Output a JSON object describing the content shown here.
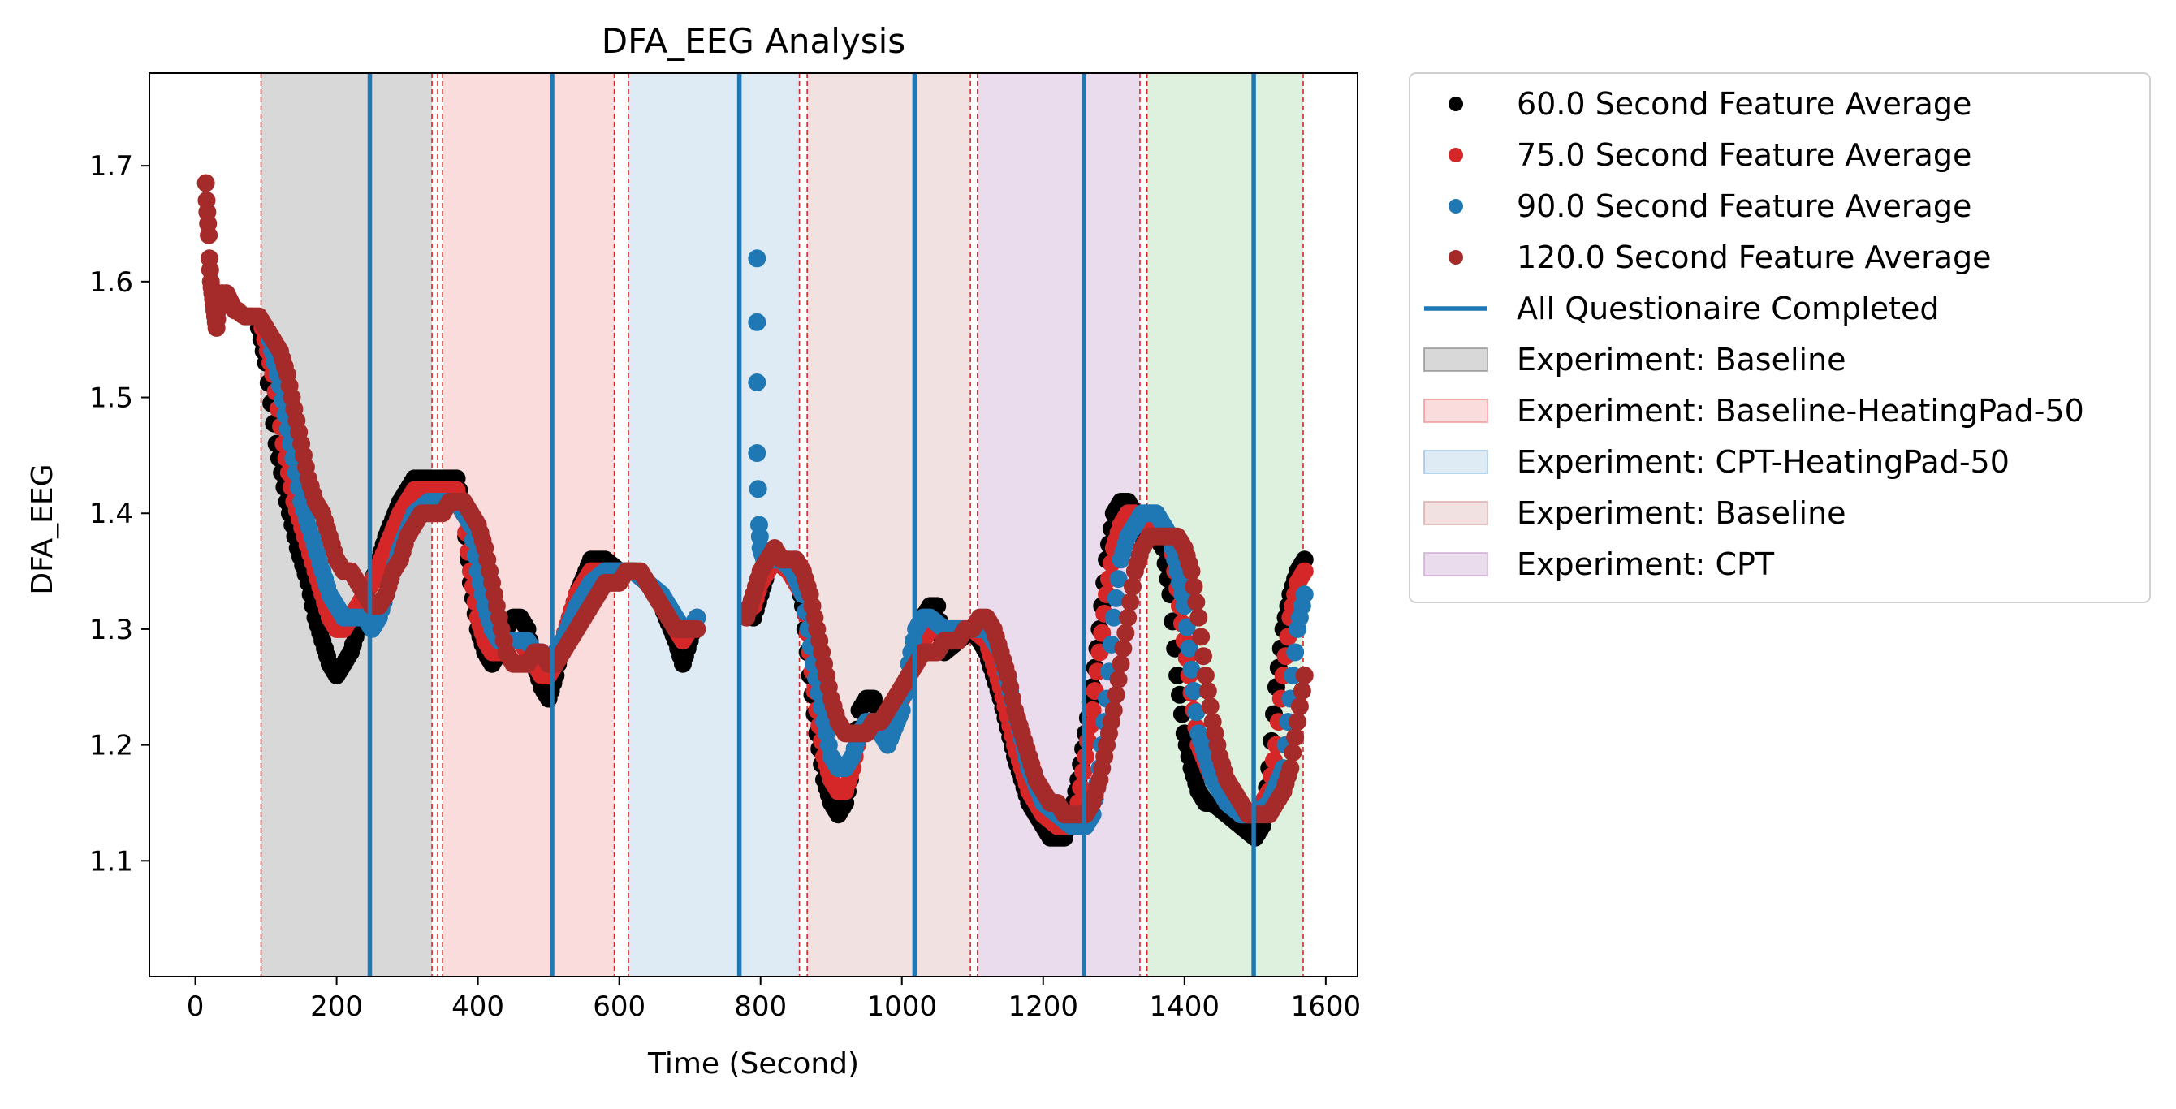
{
  "chart_data": {
    "type": "scatter",
    "title": "DFA_EEG Analysis",
    "xlabel": "Time (Second)",
    "ylabel": "DFA_EEG",
    "xlim": [
      -65,
      1645
    ],
    "ylim": [
      1.0,
      1.78
    ],
    "xticks": [
      0,
      200,
      400,
      600,
      800,
      1000,
      1200,
      1400,
      1600
    ],
    "xtick_labels": [
      "0",
      "200",
      "400",
      "600",
      "800",
      "1000",
      "1200",
      "1400",
      "1600"
    ],
    "yticks": [
      1.1,
      1.2,
      1.3,
      1.4,
      1.5,
      1.6,
      1.7
    ],
    "ytick_labels": [
      "1.1",
      "1.2",
      "1.3",
      "1.4",
      "1.5",
      "1.6",
      "1.7"
    ],
    "grid": false,
    "legend_position": "outside-right-top",
    "series": [
      {
        "name": "60.0 Second Feature Average",
        "color": "#000000",
        "x": [
          90,
          100,
          115,
          130,
          145,
          160,
          170,
          180,
          190,
          200,
          210,
          220,
          230,
          240,
          250,
          270,
          290,
          310,
          330,
          350,
          370,
          380,
          390,
          400,
          410,
          420,
          430,
          440,
          450,
          460,
          470,
          480,
          490,
          500,
          510,
          520,
          540,
          560,
          580,
          600,
          620,
          640,
          660,
          680,
          690,
          700,
          710
        ],
        "y": [
          1.56,
          1.53,
          1.46,
          1.41,
          1.37,
          1.34,
          1.31,
          1.29,
          1.27,
          1.26,
          1.27,
          1.28,
          1.3,
          1.33,
          1.34,
          1.38,
          1.41,
          1.43,
          1.43,
          1.43,
          1.43,
          1.4,
          1.34,
          1.3,
          1.28,
          1.27,
          1.28,
          1.3,
          1.31,
          1.31,
          1.3,
          1.27,
          1.25,
          1.24,
          1.26,
          1.29,
          1.33,
          1.36,
          1.36,
          1.35,
          1.35,
          1.34,
          1.32,
          1.29,
          1.27,
          1.29,
          1.31
        ]
      },
      {
        "name": "60.0 Second Feature Average",
        "color": "#000000",
        "x": [
          790,
          800,
          810,
          820,
          830,
          840,
          850,
          860,
          870,
          880,
          890,
          900,
          910,
          920,
          930,
          940,
          950,
          960,
          970,
          980,
          1000,
          1020,
          1030,
          1040,
          1050,
          1060,
          1080,
          1100,
          1120,
          1140,
          1160,
          1180,
          1200,
          1210,
          1220,
          1230,
          1240,
          1250,
          1260,
          1270,
          1280,
          1290,
          1300,
          1310,
          1320,
          1330,
          1340,
          1350,
          1360,
          1370,
          1380,
          1390,
          1400,
          1410,
          1420,
          1430,
          1440,
          1460,
          1480,
          1500,
          1510,
          1520,
          1530,
          1540,
          1550,
          1560,
          1570
        ],
        "y": [
          1.31,
          1.33,
          1.35,
          1.36,
          1.36,
          1.35,
          1.35,
          1.32,
          1.26,
          1.21,
          1.17,
          1.15,
          1.14,
          1.15,
          1.18,
          1.23,
          1.24,
          1.24,
          1.22,
          1.21,
          1.24,
          1.28,
          1.31,
          1.32,
          1.32,
          1.28,
          1.29,
          1.3,
          1.28,
          1.24,
          1.19,
          1.15,
          1.13,
          1.12,
          1.12,
          1.12,
          1.14,
          1.17,
          1.21,
          1.25,
          1.3,
          1.36,
          1.4,
          1.41,
          1.41,
          1.4,
          1.38,
          1.38,
          1.38,
          1.37,
          1.33,
          1.26,
          1.21,
          1.18,
          1.16,
          1.15,
          1.15,
          1.14,
          1.13,
          1.12,
          1.13,
          1.18,
          1.25,
          1.3,
          1.33,
          1.35,
          1.36
        ]
      },
      {
        "name": "75.0 Second Feature Average",
        "color": "#d62728",
        "x": [
          95,
          110,
          125,
          140,
          155,
          170,
          180,
          190,
          200,
          210,
          220,
          230,
          240,
          250,
          270,
          290,
          310,
          330,
          350,
          370,
          380,
          390,
          400,
          410,
          420,
          430,
          440,
          450,
          460,
          470,
          480,
          490,
          500,
          510,
          520,
          540,
          560,
          580,
          600,
          620,
          640,
          660,
          680,
          690,
          700,
          710
        ],
        "y": [
          1.56,
          1.52,
          1.46,
          1.41,
          1.38,
          1.35,
          1.33,
          1.31,
          1.3,
          1.3,
          1.31,
          1.32,
          1.33,
          1.34,
          1.37,
          1.4,
          1.42,
          1.42,
          1.42,
          1.42,
          1.4,
          1.35,
          1.31,
          1.29,
          1.28,
          1.28,
          1.29,
          1.29,
          1.29,
          1.28,
          1.27,
          1.26,
          1.26,
          1.27,
          1.29,
          1.33,
          1.35,
          1.35,
          1.35,
          1.35,
          1.34,
          1.32,
          1.3,
          1.29,
          1.3,
          1.31
        ]
      },
      {
        "name": "75.0 Second Feature Average",
        "color": "#d62728",
        "x": [
          790,
          800,
          820,
          840,
          860,
          870,
          880,
          890,
          900,
          910,
          920,
          930,
          940,
          950,
          960,
          970,
          980,
          1000,
          1020,
          1040,
          1060,
          1080,
          1100,
          1120,
          1140,
          1160,
          1180,
          1200,
          1220,
          1240,
          1250,
          1260,
          1270,
          1280,
          1290,
          1300,
          1310,
          1320,
          1330,
          1340,
          1360,
          1380,
          1400,
          1420,
          1440,
          1460,
          1480,
          1500,
          1520,
          1530,
          1540,
          1550,
          1560,
          1570
        ],
        "y": [
          1.32,
          1.34,
          1.36,
          1.35,
          1.33,
          1.28,
          1.23,
          1.19,
          1.17,
          1.16,
          1.16,
          1.18,
          1.21,
          1.22,
          1.22,
          1.21,
          1.21,
          1.24,
          1.28,
          1.3,
          1.3,
          1.3,
          1.3,
          1.29,
          1.25,
          1.2,
          1.16,
          1.14,
          1.13,
          1.13,
          1.15,
          1.19,
          1.23,
          1.28,
          1.33,
          1.37,
          1.39,
          1.4,
          1.4,
          1.39,
          1.39,
          1.38,
          1.29,
          1.2,
          1.17,
          1.16,
          1.14,
          1.14,
          1.16,
          1.2,
          1.26,
          1.31,
          1.34,
          1.35
        ]
      },
      {
        "name": "90.0 Second Feature Average",
        "color": "#1f77b4",
        "x": [
          105,
          120,
          135,
          150,
          165,
          180,
          190,
          200,
          210,
          220,
          230,
          240,
          250,
          260,
          270,
          290,
          310,
          330,
          350,
          370,
          390,
          400,
          410,
          420,
          430,
          440,
          450,
          460,
          470,
          480,
          490,
          500,
          510,
          520,
          540,
          560,
          580,
          600,
          620,
          640,
          660,
          680,
          690,
          700,
          710
        ],
        "y": [
          1.55,
          1.51,
          1.46,
          1.41,
          1.38,
          1.35,
          1.33,
          1.32,
          1.31,
          1.31,
          1.31,
          1.31,
          1.3,
          1.31,
          1.33,
          1.37,
          1.4,
          1.41,
          1.41,
          1.41,
          1.39,
          1.35,
          1.32,
          1.3,
          1.29,
          1.29,
          1.29,
          1.29,
          1.29,
          1.28,
          1.28,
          1.27,
          1.28,
          1.29,
          1.32,
          1.34,
          1.35,
          1.35,
          1.35,
          1.34,
          1.33,
          1.31,
          1.3,
          1.3,
          1.31
        ]
      },
      {
        "name": "90.0 Second Feature Average",
        "color": "#1f77b4",
        "x": [
          795,
          795,
          795,
          795,
          798,
          800,
          805,
          815,
          830,
          845,
          860,
          875,
          890,
          900,
          910,
          920,
          930,
          940,
          950,
          960,
          970,
          980,
          1000,
          1010,
          1020,
          1030,
          1040,
          1060,
          1080,
          1100,
          1120,
          1140,
          1160,
          1180,
          1200,
          1220,
          1240,
          1250,
          1260,
          1270,
          1280,
          1290,
          1300,
          1310,
          1320,
          1330,
          1340,
          1360,
          1380,
          1400,
          1420,
          1440,
          1460,
          1480,
          1500,
          1520,
          1540,
          1550,
          1560,
          1570
        ],
        "y": [
          1.62,
          1.565,
          1.513,
          1.452,
          1.39,
          1.37,
          1.36,
          1.36,
          1.36,
          1.35,
          1.33,
          1.27,
          1.22,
          1.19,
          1.18,
          1.18,
          1.19,
          1.21,
          1.22,
          1.22,
          1.21,
          1.2,
          1.23,
          1.27,
          1.3,
          1.31,
          1.31,
          1.3,
          1.3,
          1.3,
          1.3,
          1.28,
          1.23,
          1.18,
          1.15,
          1.14,
          1.13,
          1.13,
          1.13,
          1.14,
          1.18,
          1.24,
          1.31,
          1.36,
          1.38,
          1.39,
          1.4,
          1.4,
          1.38,
          1.32,
          1.21,
          1.17,
          1.15,
          1.14,
          1.14,
          1.15,
          1.18,
          1.24,
          1.3,
          1.33
        ]
      },
      {
        "name": "120.0 Second Feature Average",
        "color": "#a52a2a",
        "x": [
          15,
          16,
          17,
          18,
          19,
          20,
          21,
          22,
          23,
          24,
          25,
          26,
          27,
          28,
          29,
          30,
          32,
          34,
          36,
          38,
          40,
          44,
          48,
          52,
          56,
          60,
          65,
          70,
          75,
          80,
          90,
          100,
          110,
          120,
          130,
          140,
          150,
          160,
          170,
          180,
          190,
          200,
          210,
          220,
          230,
          240,
          250,
          260,
          270,
          280,
          290,
          300,
          310,
          320,
          330,
          340,
          350,
          360,
          370,
          380,
          390,
          400,
          410,
          420,
          430,
          440,
          450,
          460,
          470,
          480,
          490,
          500,
          510,
          520,
          530,
          540,
          550,
          560,
          570,
          580,
          590,
          600,
          610,
          620,
          630,
          640,
          650,
          660,
          670,
          680,
          690,
          700,
          710
        ],
        "y": [
          1.685,
          1.67,
          1.66,
          1.65,
          1.64,
          1.62,
          1.61,
          1.6,
          1.595,
          1.59,
          1.585,
          1.58,
          1.575,
          1.57,
          1.565,
          1.56,
          1.575,
          1.58,
          1.585,
          1.59,
          1.585,
          1.59,
          1.585,
          1.58,
          1.575,
          1.575,
          1.572,
          1.57,
          1.57,
          1.57,
          1.57,
          1.56,
          1.55,
          1.54,
          1.52,
          1.49,
          1.46,
          1.43,
          1.41,
          1.4,
          1.38,
          1.36,
          1.35,
          1.35,
          1.34,
          1.33,
          1.32,
          1.32,
          1.33,
          1.35,
          1.36,
          1.38,
          1.39,
          1.4,
          1.4,
          1.4,
          1.4,
          1.41,
          1.41,
          1.41,
          1.4,
          1.39,
          1.37,
          1.34,
          1.31,
          1.28,
          1.27,
          1.27,
          1.27,
          1.28,
          1.28,
          1.27,
          1.27,
          1.28,
          1.29,
          1.3,
          1.31,
          1.32,
          1.33,
          1.34,
          1.34,
          1.34,
          1.35,
          1.35,
          1.35,
          1.34,
          1.33,
          1.32,
          1.31,
          1.3,
          1.3,
          1.3,
          1.3
        ]
      },
      {
        "name": "120.0 Second Feature Average",
        "color": "#a52a2a",
        "x": [
          780,
          785,
          790,
          800,
          810,
          820,
          830,
          840,
          850,
          860,
          870,
          880,
          890,
          900,
          910,
          920,
          930,
          940,
          950,
          960,
          970,
          980,
          990,
          1000,
          1010,
          1020,
          1030,
          1040,
          1050,
          1060,
          1070,
          1080,
          1090,
          1100,
          1110,
          1120,
          1130,
          1140,
          1150,
          1160,
          1170,
          1180,
          1190,
          1200,
          1210,
          1220,
          1230,
          1240,
          1250,
          1260,
          1270,
          1280,
          1290,
          1300,
          1310,
          1320,
          1330,
          1340,
          1350,
          1360,
          1370,
          1380,
          1390,
          1400,
          1410,
          1420,
          1430,
          1440,
          1450,
          1460,
          1470,
          1480,
          1490,
          1500,
          1510,
          1520,
          1530,
          1540,
          1550,
          1560,
          1570
        ],
        "y": [
          1.31,
          1.32,
          1.33,
          1.35,
          1.36,
          1.37,
          1.36,
          1.36,
          1.36,
          1.35,
          1.33,
          1.3,
          1.27,
          1.24,
          1.22,
          1.21,
          1.21,
          1.21,
          1.21,
          1.22,
          1.22,
          1.23,
          1.24,
          1.25,
          1.26,
          1.27,
          1.28,
          1.28,
          1.28,
          1.29,
          1.29,
          1.29,
          1.3,
          1.3,
          1.31,
          1.31,
          1.3,
          1.28,
          1.26,
          1.23,
          1.21,
          1.19,
          1.17,
          1.16,
          1.15,
          1.15,
          1.14,
          1.14,
          1.14,
          1.14,
          1.15,
          1.17,
          1.2,
          1.23,
          1.27,
          1.31,
          1.35,
          1.37,
          1.38,
          1.38,
          1.38,
          1.38,
          1.38,
          1.37,
          1.35,
          1.31,
          1.26,
          1.22,
          1.19,
          1.17,
          1.16,
          1.15,
          1.14,
          1.14,
          1.14,
          1.14,
          1.15,
          1.16,
          1.18,
          1.22,
          1.26
        ]
      }
    ],
    "questionnaire_times": [
      247,
      505,
      770,
      1018,
      1258,
      1498
    ],
    "questionnaire_color": "#1f77b4",
    "experiment_spans": [
      {
        "start": 93,
        "end": 335,
        "color": "#7f7f7f",
        "alpha": 0.3
      },
      {
        "start": 350,
        "end": 593,
        "color": "#f08080",
        "alpha": 0.28
      },
      {
        "start": 613,
        "end": 855,
        "color": "#87b6d8",
        "alpha": 0.28
      },
      {
        "start": 866,
        "end": 1097,
        "color": "#d49a9a",
        "alpha": 0.3
      },
      {
        "start": 1107,
        "end": 1337,
        "color": "#c49ccc",
        "alpha": 0.35
      },
      {
        "start": 1347,
        "end": 1568,
        "color": "#98d098",
        "alpha": 0.32
      }
    ],
    "boundary_lines": [
      93,
      335,
      343,
      350,
      593,
      613,
      855,
      866,
      1097,
      1107,
      1337,
      1347,
      1568
    ],
    "boundary_color": "#d62728",
    "legend": [
      {
        "kind": "marker",
        "label": "60.0 Second Feature Average",
        "color": "#000000"
      },
      {
        "kind": "marker",
        "label": "75.0 Second Feature Average",
        "color": "#d62728"
      },
      {
        "kind": "marker",
        "label": "90.0 Second Feature Average",
        "color": "#1f77b4"
      },
      {
        "kind": "marker",
        "label": "120.0 Second Feature Average",
        "color": "#a52a2a"
      },
      {
        "kind": "line",
        "label": "All Questionaire Completed",
        "color": "#1f77b4"
      },
      {
        "kind": "patch",
        "label": "Experiment: Baseline",
        "color": "#7f7f7f",
        "alpha": 0.3
      },
      {
        "kind": "patch",
        "label": "Experiment: Baseline-HeatingPad-50",
        "color": "#f08080",
        "alpha": 0.28
      },
      {
        "kind": "patch",
        "label": "Experiment: CPT-HeatingPad-50",
        "color": "#87b6d8",
        "alpha": 0.28
      },
      {
        "kind": "patch",
        "label": "Experiment: Baseline",
        "color": "#d49a9a",
        "alpha": 0.3
      },
      {
        "kind": "patch",
        "label": "Experiment: CPT",
        "color": "#c49ccc",
        "alpha": 0.35
      }
    ]
  }
}
